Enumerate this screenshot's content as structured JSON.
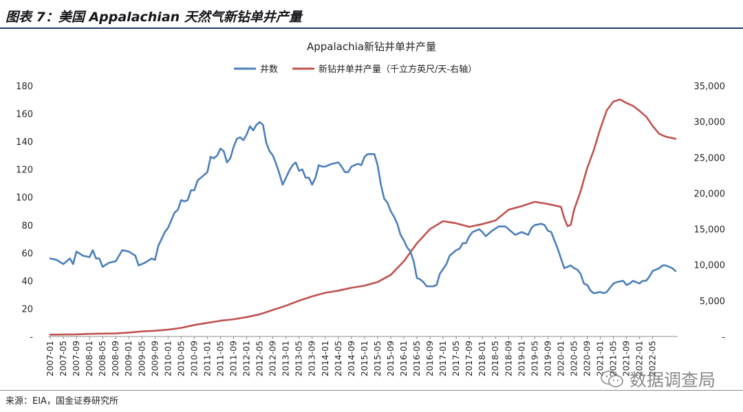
{
  "figure_title": "图表 7：美国 Appalachian 天然气新钻单井产量",
  "source": "来源：EIA，国金证券研究所",
  "watermark": "数据调查局",
  "chart_data": {
    "type": "line",
    "title": "Appalachia新钻井单井产量",
    "y_left": {
      "min": 0,
      "max": 180,
      "ticks": [
        0,
        20,
        40,
        60,
        80,
        100,
        120,
        140,
        160,
        180
      ],
      "tick_labels": [
        "-",
        "20",
        "40",
        "60",
        "80",
        "100",
        "120",
        "140",
        "160",
        "180"
      ]
    },
    "y_right": {
      "min": 0,
      "max": 35000,
      "ticks": [
        0,
        5000,
        10000,
        15000,
        20000,
        25000,
        30000,
        35000
      ],
      "tick_labels": [
        "-",
        "5,000",
        "10,000",
        "15,000",
        "20,000",
        "25,000",
        "30,000",
        "35,000"
      ]
    },
    "x_start": "2007-01",
    "categories_labels": [
      "2007-01",
      "2007-05",
      "2007-09",
      "2008-01",
      "2008-05",
      "2008-09",
      "2009-01",
      "2009-05",
      "2009-09",
      "2010-01",
      "2010-05",
      "2010-09",
      "2011-01",
      "2011-05",
      "2011-09",
      "2012-01",
      "2012-05",
      "2012-09",
      "2013-01",
      "2013-05",
      "2013-09",
      "2014-01",
      "2014-05",
      "2014-09",
      "2015-01",
      "2015-05",
      "2015-09",
      "2016-01",
      "2016-05",
      "2016-09",
      "2017-01",
      "2017-05",
      "2017-09",
      "2018-01",
      "2018-05",
      "2018-09",
      "2019-01",
      "2019-05",
      "2019-09",
      "2020-01",
      "2020-05",
      "2020-09",
      "2021-01",
      "2021-05",
      "2021-09",
      "2022-01",
      "2022-05"
    ],
    "grid": false,
    "legend_position": "top",
    "series": [
      {
        "name": "井数",
        "axis": "left",
        "color": "#4a7ebb",
        "points": [
          [
            "2007-01",
            56
          ],
          [
            "2007-03",
            55
          ],
          [
            "2007-05",
            52
          ],
          [
            "2007-07",
            56
          ],
          [
            "2007-08",
            52
          ],
          [
            "2007-09",
            61
          ],
          [
            "2007-11",
            58
          ],
          [
            "2008-01",
            57
          ],
          [
            "2008-02",
            62
          ],
          [
            "2008-03",
            56
          ],
          [
            "2008-04",
            56
          ],
          [
            "2008-05",
            50
          ],
          [
            "2008-07",
            53
          ],
          [
            "2008-09",
            54
          ],
          [
            "2008-11",
            62
          ],
          [
            "2009-01",
            61
          ],
          [
            "2009-03",
            58
          ],
          [
            "2009-04",
            51
          ],
          [
            "2009-06",
            53
          ],
          [
            "2009-08",
            56
          ],
          [
            "2009-09",
            55
          ],
          [
            "2009-10",
            65
          ],
          [
            "2009-12",
            75
          ],
          [
            "2010-01",
            78
          ],
          [
            "2010-03",
            89
          ],
          [
            "2010-04",
            91
          ],
          [
            "2010-05",
            98
          ],
          [
            "2010-06",
            97
          ],
          [
            "2010-07",
            98
          ],
          [
            "2010-08",
            105
          ],
          [
            "2010-09",
            105
          ],
          [
            "2010-10",
            112
          ],
          [
            "2010-12",
            116
          ],
          [
            "2011-01",
            118
          ],
          [
            "2011-02",
            129
          ],
          [
            "2011-03",
            128
          ],
          [
            "2011-04",
            130
          ],
          [
            "2011-05",
            135
          ],
          [
            "2011-06",
            133
          ],
          [
            "2011-07",
            125
          ],
          [
            "2011-08",
            128
          ],
          [
            "2011-09",
            136
          ],
          [
            "2011-10",
            142
          ],
          [
            "2011-11",
            143
          ],
          [
            "2011-12",
            141
          ],
          [
            "2012-01",
            145
          ],
          [
            "2012-02",
            151
          ],
          [
            "2012-03",
            148
          ],
          [
            "2012-04",
            152
          ],
          [
            "2012-05",
            154
          ],
          [
            "2012-06",
            152
          ],
          [
            "2012-07",
            139
          ],
          [
            "2012-08",
            133
          ],
          [
            "2012-09",
            130
          ],
          [
            "2012-10",
            124
          ],
          [
            "2012-11",
            117
          ],
          [
            "2012-12",
            109
          ],
          [
            "2013-01",
            114
          ],
          [
            "2013-02",
            119
          ],
          [
            "2013-03",
            123
          ],
          [
            "2013-04",
            125
          ],
          [
            "2013-05",
            119
          ],
          [
            "2013-06",
            120
          ],
          [
            "2013-07",
            114
          ],
          [
            "2013-08",
            114
          ],
          [
            "2013-09",
            109
          ],
          [
            "2013-10",
            114
          ],
          [
            "2013-11",
            123
          ],
          [
            "2013-12",
            122
          ],
          [
            "2014-01",
            122
          ],
          [
            "2014-03",
            124
          ],
          [
            "2014-05",
            125
          ],
          [
            "2014-06",
            122
          ],
          [
            "2014-07",
            118
          ],
          [
            "2014-08",
            118
          ],
          [
            "2014-09",
            122
          ],
          [
            "2014-10",
            123
          ],
          [
            "2014-11",
            124
          ],
          [
            "2014-12",
            123
          ],
          [
            "2015-01",
            129
          ],
          [
            "2015-02",
            131
          ],
          [
            "2015-04",
            131
          ],
          [
            "2015-05",
            123
          ],
          [
            "2015-06",
            109
          ],
          [
            "2015-07",
            99
          ],
          [
            "2015-08",
            96
          ],
          [
            "2015-09",
            90
          ],
          [
            "2015-10",
            86
          ],
          [
            "2015-11",
            81
          ],
          [
            "2015-12",
            73
          ],
          [
            "2016-01",
            69
          ],
          [
            "2016-02",
            64
          ],
          [
            "2016-03",
            61
          ],
          [
            "2016-04",
            54
          ],
          [
            "2016-05",
            42
          ],
          [
            "2016-06",
            41
          ],
          [
            "2016-07",
            39
          ],
          [
            "2016-08",
            36
          ],
          [
            "2016-10",
            36
          ],
          [
            "2016-11",
            37
          ],
          [
            "2016-12",
            45
          ],
          [
            "2017-02",
            52
          ],
          [
            "2017-03",
            58
          ],
          [
            "2017-05",
            62
          ],
          [
            "2017-06",
            63
          ],
          [
            "2017-07",
            67
          ],
          [
            "2017-08",
            67
          ],
          [
            "2017-09",
            72
          ],
          [
            "2017-10",
            75
          ],
          [
            "2017-12",
            77
          ],
          [
            "2018-01",
            75
          ],
          [
            "2018-02",
            72
          ],
          [
            "2018-04",
            76
          ],
          [
            "2018-06",
            79
          ],
          [
            "2018-08",
            79
          ],
          [
            "2018-09",
            77
          ],
          [
            "2018-10",
            75
          ],
          [
            "2018-11",
            73
          ],
          [
            "2019-01",
            75
          ],
          [
            "2019-03",
            73
          ],
          [
            "2019-04",
            78
          ],
          [
            "2019-05",
            80
          ],
          [
            "2019-07",
            81
          ],
          [
            "2019-08",
            80
          ],
          [
            "2019-09",
            76
          ],
          [
            "2019-10",
            75
          ],
          [
            "2019-11",
            69
          ],
          [
            "2019-12",
            63
          ],
          [
            "2020-01",
            56
          ],
          [
            "2020-02",
            49
          ],
          [
            "2020-04",
            51
          ],
          [
            "2020-05",
            49
          ],
          [
            "2020-06",
            48
          ],
          [
            "2020-07",
            45
          ],
          [
            "2020-08",
            38
          ],
          [
            "2020-09",
            37
          ],
          [
            "2020-10",
            33
          ],
          [
            "2020-11",
            31
          ],
          [
            "2021-01",
            32
          ],
          [
            "2021-02",
            31
          ],
          [
            "2021-03",
            32
          ],
          [
            "2021-04",
            35
          ],
          [
            "2021-05",
            38
          ],
          [
            "2021-06",
            39
          ],
          [
            "2021-08",
            40
          ],
          [
            "2021-09",
            37
          ],
          [
            "2021-10",
            38
          ],
          [
            "2021-11",
            40
          ],
          [
            "2022-01",
            38
          ],
          [
            "2022-02",
            40
          ],
          [
            "2022-03",
            40
          ],
          [
            "2022-04",
            43
          ],
          [
            "2022-05",
            47
          ],
          [
            "2022-07",
            49
          ],
          [
            "2022-08",
            51
          ],
          [
            "2022-09",
            51
          ],
          [
            "2022-10",
            50
          ],
          [
            "2022-11",
            49
          ],
          [
            "2022-12",
            47
          ]
        ]
      },
      {
        "name": "新钻井单井产量（千立方英尺/天-右轴）",
        "axis": "right",
        "color": "#c0504d",
        "points": [
          [
            "2007-01",
            260
          ],
          [
            "2007-09",
            300
          ],
          [
            "2008-01",
            360
          ],
          [
            "2008-09",
            420
          ],
          [
            "2009-01",
            550
          ],
          [
            "2009-05",
            700
          ],
          [
            "2009-09",
            800
          ],
          [
            "2010-01",
            950
          ],
          [
            "2010-05",
            1200
          ],
          [
            "2010-09",
            1600
          ],
          [
            "2011-01",
            1900
          ],
          [
            "2011-05",
            2200
          ],
          [
            "2011-09",
            2400
          ],
          [
            "2012-01",
            2700
          ],
          [
            "2012-05",
            3100
          ],
          [
            "2012-09",
            3700
          ],
          [
            "2013-01",
            4300
          ],
          [
            "2013-05",
            5000
          ],
          [
            "2013-09",
            5600
          ],
          [
            "2014-01",
            6100
          ],
          [
            "2014-05",
            6400
          ],
          [
            "2014-09",
            6800
          ],
          [
            "2015-01",
            7100
          ],
          [
            "2015-05",
            7600
          ],
          [
            "2015-09",
            8600
          ],
          [
            "2016-01",
            10500
          ],
          [
            "2016-05",
            13000
          ],
          [
            "2016-09",
            15000
          ],
          [
            "2017-01",
            16100
          ],
          [
            "2017-05",
            15800
          ],
          [
            "2017-09",
            15300
          ],
          [
            "2018-01",
            15700
          ],
          [
            "2018-05",
            16200
          ],
          [
            "2018-09",
            17700
          ],
          [
            "2019-01",
            18200
          ],
          [
            "2019-05",
            18800
          ],
          [
            "2019-09",
            18500
          ],
          [
            "2020-01",
            18100
          ],
          [
            "2020-02",
            16500
          ],
          [
            "2020-03",
            15400
          ],
          [
            "2020-04",
            15600
          ],
          [
            "2020-05",
            17700
          ],
          [
            "2020-07",
            20300
          ],
          [
            "2020-09",
            23500
          ],
          [
            "2020-11",
            26000
          ],
          [
            "2021-01",
            29000
          ],
          [
            "2021-03",
            31600
          ],
          [
            "2021-05",
            32800
          ],
          [
            "2021-07",
            33100
          ],
          [
            "2021-09",
            32600
          ],
          [
            "2021-11",
            32200
          ],
          [
            "2022-01",
            31500
          ],
          [
            "2022-03",
            30700
          ],
          [
            "2022-05",
            29400
          ],
          [
            "2022-07",
            28300
          ],
          [
            "2022-09",
            27900
          ],
          [
            "2022-11",
            27700
          ],
          [
            "2022-12",
            27600
          ]
        ]
      }
    ]
  }
}
